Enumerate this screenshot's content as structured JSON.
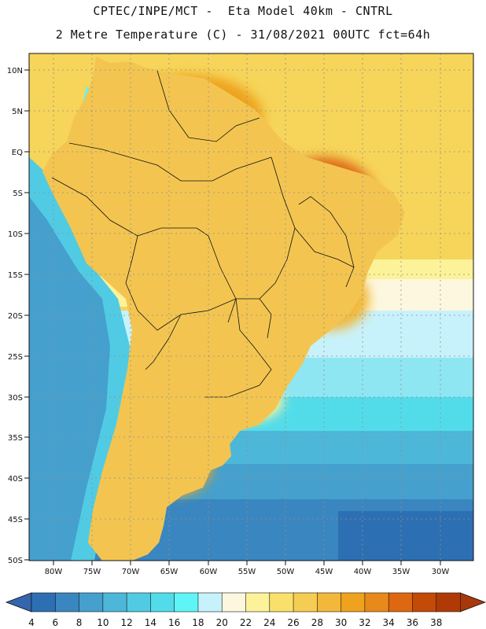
{
  "header": {
    "line1": "CPTEC/INPE/MCT -  Eta Model 40km - CNTRL",
    "line2": "2 Metre Temperature (C) - 31/08/2021 00UTC fct=64h"
  },
  "axes": {
    "lat_labels": [
      "10N",
      "5N",
      "EQ",
      "5S",
      "10S",
      "15S",
      "20S",
      "25S",
      "30S",
      "35S",
      "40S",
      "45S",
      "50S"
    ],
    "lon_labels": [
      "80W",
      "75W",
      "70W",
      "65W",
      "60W",
      "55W",
      "50W",
      "45W",
      "40W",
      "35W",
      "30W"
    ]
  },
  "colorbar": {
    "levels": [
      "4",
      "6",
      "8",
      "10",
      "12",
      "14",
      "16",
      "18",
      "20",
      "22",
      "24",
      "26",
      "28",
      "30",
      "32",
      "34",
      "36",
      "38"
    ],
    "colors": [
      "#2d6fb3",
      "#3a86c0",
      "#45a0cd",
      "#4db7d9",
      "#51cbe3",
      "#52dcea",
      "#5ff5f7",
      "#c8f2fb",
      "#fdf7df",
      "#fcf29a",
      "#f9e06a",
      "#f5cd52",
      "#f1b83b",
      "#eea21e",
      "#e8891c",
      "#de6812",
      "#c44a08",
      "#b03a05"
    ],
    "under_color": "#3465ad",
    "over_color": "#a8380b"
  }
}
